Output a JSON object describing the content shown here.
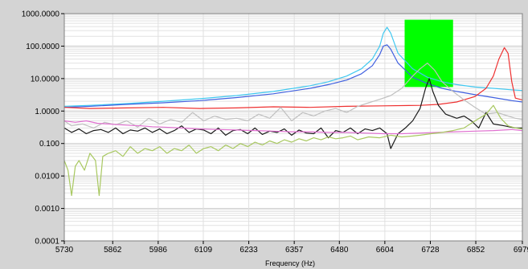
{
  "chart_data": {
    "type": "line",
    "title": "",
    "xlabel": "Frequency (Hz)",
    "ylabel": "",
    "y_scale": "log",
    "grid": true,
    "xlim": [
      5730,
      6979
    ],
    "ylim": [
      0.0001,
      1000
    ],
    "x_ticks": [
      "5730",
      "5862",
      "5986",
      "6109",
      "6233",
      "6357",
      "6480",
      "6604",
      "6728",
      "6852",
      "6979"
    ],
    "y_ticks": [
      "0.0001",
      "0.0010",
      "0.0100",
      "0.100",
      "1.0000",
      "10.0000",
      "100.0000",
      "1000.0000"
    ],
    "highlight_box": {
      "color": "#00ff00",
      "x_range": [
        6658,
        6790
      ],
      "y_range": [
        5.5,
        650
      ]
    },
    "series": [
      {
        "color": "#40c8f0",
        "x": [
          5730,
          5800,
          5900,
          6000,
          6100,
          6200,
          6300,
          6400,
          6450,
          6500,
          6540,
          6570,
          6590,
          6600,
          6610,
          6620,
          6640,
          6680,
          6720,
          6760,
          6800,
          6850,
          6900,
          6950,
          6979
        ],
        "y": [
          1.4,
          1.5,
          1.7,
          2.0,
          2.4,
          3.0,
          4.0,
          6.0,
          8.0,
          12,
          20,
          40,
          100,
          250,
          380,
          250,
          60,
          20,
          11,
          8,
          6.5,
          5.5,
          5,
          4.5,
          4.3
        ]
      },
      {
        "color": "#4060e0",
        "x": [
          5730,
          5800,
          5900,
          6000,
          6100,
          6200,
          6300,
          6400,
          6450,
          6500,
          6540,
          6570,
          6590,
          6600,
          6610,
          6620,
          6640,
          6680,
          6720,
          6760,
          6800,
          6850,
          6900,
          6950,
          6979
        ],
        "y": [
          1.3,
          1.4,
          1.6,
          1.8,
          2.1,
          2.6,
          3.4,
          5.0,
          6.5,
          9,
          14,
          25,
          55,
          100,
          110,
          80,
          30,
          11,
          7,
          5,
          4,
          3.2,
          2.6,
          2.1,
          1.9
        ]
      },
      {
        "color": "#ee3030",
        "x": [
          5730,
          5800,
          5900,
          6000,
          6100,
          6200,
          6300,
          6400,
          6500,
          6600,
          6700,
          6750,
          6800,
          6850,
          6880,
          6900,
          6915,
          6930,
          6940,
          6950,
          6960,
          6979
        ],
        "y": [
          1.3,
          1.2,
          1.25,
          1.3,
          1.2,
          1.25,
          1.35,
          1.3,
          1.4,
          1.45,
          1.5,
          1.6,
          1.9,
          2.8,
          5,
          12,
          40,
          90,
          60,
          8,
          2.5,
          2.2
        ]
      },
      {
        "color": "#c0c0c0",
        "x": [
          5730,
          5750,
          5780,
          5810,
          5840,
          5870,
          5900,
          5930,
          5960,
          5990,
          6020,
          6050,
          6080,
          6110,
          6140,
          6170,
          6200,
          6230,
          6260,
          6290,
          6320,
          6350,
          6380,
          6410,
          6440,
          6470,
          6500,
          6530,
          6560,
          6590,
          6620,
          6650,
          6680,
          6700,
          6720,
          6740,
          6760,
          6790,
          6820,
          6850,
          6880,
          6910,
          6940,
          6960,
          6979
        ],
        "y": [
          0.5,
          0.35,
          0.4,
          0.3,
          0.45,
          0.38,
          0.5,
          0.32,
          0.6,
          0.4,
          0.55,
          0.45,
          0.9,
          0.5,
          0.7,
          0.55,
          0.6,
          0.5,
          0.8,
          0.6,
          1.3,
          0.5,
          0.9,
          0.7,
          1.0,
          1.2,
          0.9,
          1.4,
          1.8,
          2.3,
          3.0,
          5.0,
          12,
          20,
          30,
          18,
          8,
          4,
          2.2,
          1.3,
          0.8,
          0.9,
          0.7,
          0.6,
          0.55
        ]
      },
      {
        "color": "#1a1a1a",
        "x": [
          5730,
          5750,
          5770,
          5790,
          5810,
          5830,
          5850,
          5870,
          5890,
          5910,
          5930,
          5950,
          5970,
          5990,
          6010,
          6030,
          6050,
          6070,
          6090,
          6110,
          6130,
          6150,
          6170,
          6190,
          6210,
          6230,
          6250,
          6270,
          6290,
          6310,
          6330,
          6350,
          6370,
          6390,
          6410,
          6430,
          6450,
          6470,
          6490,
          6510,
          6530,
          6550,
          6570,
          6590,
          6610,
          6620,
          6640,
          6660,
          6680,
          6700,
          6715,
          6725,
          6735,
          6750,
          6770,
          6800,
          6820,
          6840,
          6860,
          6880,
          6900,
          6930,
          6960,
          6979
        ],
        "y": [
          0.3,
          0.22,
          0.28,
          0.2,
          0.25,
          0.27,
          0.22,
          0.3,
          0.2,
          0.26,
          0.24,
          0.3,
          0.22,
          0.28,
          0.2,
          0.25,
          0.35,
          0.22,
          0.28,
          0.26,
          0.2,
          0.3,
          0.18,
          0.25,
          0.27,
          0.2,
          0.3,
          0.19,
          0.24,
          0.22,
          0.28,
          0.18,
          0.26,
          0.21,
          0.2,
          0.3,
          0.15,
          0.25,
          0.22,
          0.3,
          0.2,
          0.28,
          0.25,
          0.3,
          0.2,
          0.07,
          0.2,
          0.3,
          0.5,
          1.2,
          5,
          10,
          4,
          1.5,
          0.8,
          0.6,
          0.7,
          0.5,
          0.3,
          0.9,
          0.4,
          0.35,
          0.3,
          0.3
        ]
      },
      {
        "color": "#e070d0",
        "x": [
          5730,
          5760,
          5790,
          5820,
          5850,
          5880,
          5910,
          5940,
          5970,
          6000,
          6050,
          6100,
          6150,
          6200,
          6250,
          6300,
          6350,
          6400,
          6450,
          6500,
          6550,
          6600,
          6650,
          6700,
          6750,
          6800,
          6850,
          6900,
          6950,
          6979
        ],
        "y": [
          0.5,
          0.45,
          0.5,
          0.42,
          0.4,
          0.38,
          0.36,
          0.35,
          0.33,
          0.32,
          0.3,
          0.28,
          0.27,
          0.26,
          0.25,
          0.24,
          0.23,
          0.23,
          0.22,
          0.22,
          0.21,
          0.2,
          0.2,
          0.21,
          0.22,
          0.23,
          0.24,
          0.25,
          0.27,
          0.25
        ]
      },
      {
        "color": "#a8c860",
        "x": [
          5730,
          5740,
          5750,
          5760,
          5770,
          5785,
          5800,
          5815,
          5825,
          5835,
          5850,
          5870,
          5890,
          5910,
          5930,
          5950,
          5970,
          5990,
          6010,
          6030,
          6050,
          6070,
          6090,
          6110,
          6130,
          6150,
          6170,
          6190,
          6210,
          6230,
          6250,
          6270,
          6290,
          6310,
          6330,
          6350,
          6370,
          6390,
          6410,
          6430,
          6450,
          6470,
          6490,
          6510,
          6530,
          6560,
          6590,
          6620,
          6650,
          6680,
          6700,
          6730,
          6760,
          6790,
          6820,
          6850,
          6880,
          6900,
          6920,
          6940,
          6960,
          6979
        ],
        "y": [
          0.03,
          0.015,
          0.0025,
          0.02,
          0.03,
          0.015,
          0.05,
          0.03,
          0.0025,
          0.04,
          0.05,
          0.06,
          0.04,
          0.08,
          0.05,
          0.07,
          0.06,
          0.08,
          0.05,
          0.07,
          0.06,
          0.09,
          0.05,
          0.07,
          0.08,
          0.06,
          0.09,
          0.07,
          0.1,
          0.08,
          0.11,
          0.09,
          0.12,
          0.1,
          0.13,
          0.11,
          0.14,
          0.12,
          0.15,
          0.13,
          0.16,
          0.14,
          0.15,
          0.17,
          0.13,
          0.16,
          0.15,
          0.18,
          0.16,
          0.17,
          0.18,
          0.2,
          0.22,
          0.25,
          0.3,
          0.5,
          0.8,
          1.5,
          0.6,
          0.35,
          0.3,
          0.28
        ]
      }
    ]
  }
}
